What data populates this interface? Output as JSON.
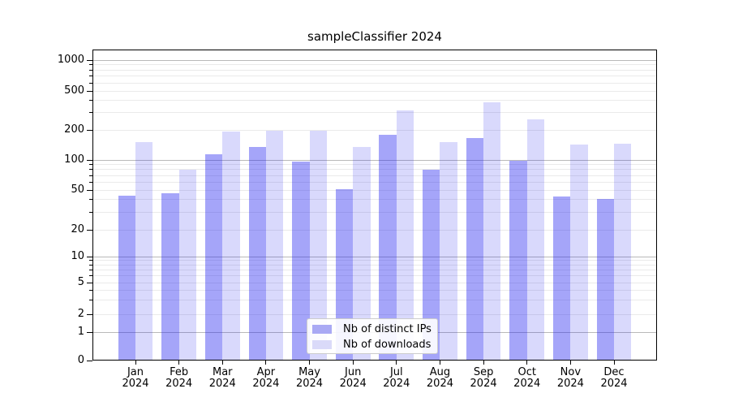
{
  "chart_data": {
    "type": "bar",
    "title": "sampleClassifier 2024",
    "categories": [
      "Jan\n2024",
      "Feb\n2024",
      "Mar\n2024",
      "Apr\n2024",
      "May\n2024",
      "Jun\n2024",
      "Jul\n2024",
      "Aug\n2024",
      "Sep\n2024",
      "Oct\n2024",
      "Nov\n2024",
      "Dec\n2024"
    ],
    "series": [
      {
        "name": "Nb of distinct IPs",
        "color": "rgba(30,30,240,0.40)",
        "legend_swatch_color": "#a9a9f4",
        "values": [
          44,
          46,
          115,
          135,
          96,
          51,
          178,
          80,
          166,
          98,
          43,
          41
        ]
      },
      {
        "name": "Nb of downloads",
        "color": "rgba(30,30,240,0.17)",
        "legend_swatch_color": "#dadaf9",
        "values": [
          150,
          80,
          193,
          196,
          198,
          135,
          315,
          150,
          385,
          258,
          143,
          146
        ]
      }
    ],
    "y_axis": {
      "scale": "symlog",
      "tick_labels": [
        "0",
        "1",
        "2",
        "5",
        "10",
        "20",
        "50",
        "100",
        "200",
        "500",
        "1000"
      ],
      "tick_values": [
        0,
        1,
        2,
        5,
        10,
        20,
        50,
        100,
        200,
        500,
        1000
      ],
      "range": [
        0,
        1000
      ]
    },
    "legend": {
      "position": "lower center"
    },
    "grid": {
      "major_color": "#b9b9b9",
      "minor_color": "#eaeaea",
      "enabled": true
    }
  }
}
